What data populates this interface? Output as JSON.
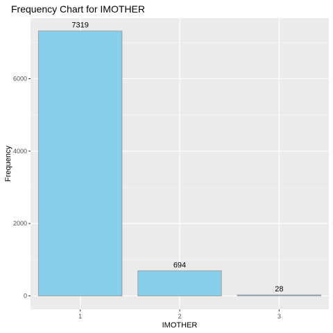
{
  "chart_data": {
    "type": "bar",
    "title": "Frequency Chart for IMOTHER",
    "xlabel": "IMOTHER",
    "ylabel": "Frequency",
    "categories": [
      "1",
      "2",
      "3"
    ],
    "values": [
      7319,
      694,
      28
    ],
    "data_labels": [
      "7319",
      "694",
      "28"
    ],
    "y_ticks": [
      0,
      2000,
      4000,
      6000
    ],
    "y_tick_labels": [
      "0",
      "2000",
      "4000",
      "6000"
    ],
    "ylim": [
      0,
      7684
    ],
    "grid": true,
    "legend": "none",
    "colors": {
      "bar_fill": "#87ceeb",
      "bar_stroke": "#a0a0a0",
      "panel_bg": "#ebebeb",
      "grid_major": "#ffffff",
      "grid_minor": "#f4f4f4"
    }
  }
}
